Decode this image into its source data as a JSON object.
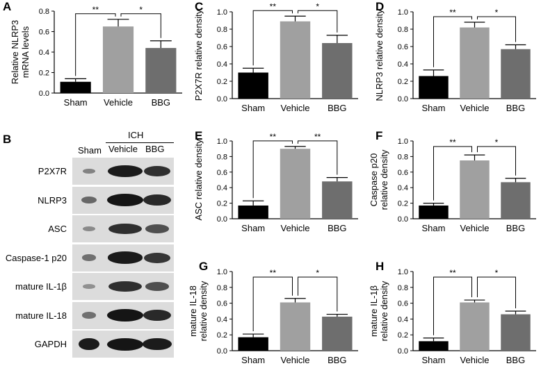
{
  "letters": {
    "A": "A",
    "B": "B",
    "C": "C",
    "D": "D",
    "E": "E",
    "F": "F",
    "G": "G",
    "H": "H"
  },
  "blot": {
    "group_label": "ICH",
    "columns": [
      "Sham",
      "Vehicle",
      "BBG"
    ],
    "rows": [
      "P2X7R",
      "NLRP3",
      "ASC",
      "Caspase-1 p20",
      "mature IL-1β",
      "mature IL-18",
      "GAPDH"
    ],
    "intensity": [
      [
        0.15,
        0.95,
        0.8
      ],
      [
        0.35,
        1.0,
        0.85
      ],
      [
        0.1,
        0.8,
        0.55
      ],
      [
        0.3,
        0.95,
        0.75
      ],
      [
        0.05,
        0.8,
        0.55
      ],
      [
        0.3,
        1.0,
        0.85
      ],
      [
        0.95,
        1.0,
        0.95
      ]
    ]
  },
  "colors": {
    "sham": "#000000",
    "vehicle": "#a0a0a0",
    "bbg": "#6e6e6e"
  },
  "chart_data": [
    {
      "id": "A",
      "type": "bar",
      "categories": [
        "Sham",
        "Vehicle",
        "BBG"
      ],
      "values": [
        0.11,
        0.65,
        0.44
      ],
      "errors": [
        0.03,
        0.07,
        0.07
      ],
      "ylabel": [
        "Relative NLRP3",
        "mRNA levels"
      ],
      "ylim": [
        0,
        0.8
      ],
      "ticks": [
        "0.0",
        "0.2",
        "0.4",
        "0.6",
        "0.8"
      ],
      "significance": [
        {
          "from": 0,
          "to": 1,
          "label": "**"
        },
        {
          "from": 1,
          "to": 2,
          "label": "*"
        }
      ]
    },
    {
      "id": "C",
      "type": "bar",
      "categories": [
        "Sham",
        "Vehicle",
        "BBG"
      ],
      "values": [
        0.3,
        0.89,
        0.64
      ],
      "errors": [
        0.05,
        0.06,
        0.09
      ],
      "ylabel": [
        "P2X7R relative density"
      ],
      "ylim": [
        0,
        1.0
      ],
      "ticks": [
        "0.0",
        "0.2",
        "0.4",
        "0.6",
        "0.8",
        "1.0"
      ],
      "significance": [
        {
          "from": 0,
          "to": 1,
          "label": "**"
        },
        {
          "from": 1,
          "to": 2,
          "label": "*"
        }
      ]
    },
    {
      "id": "D",
      "type": "bar",
      "categories": [
        "Sham",
        "Vehicle",
        "BBG"
      ],
      "values": [
        0.26,
        0.82,
        0.57
      ],
      "errors": [
        0.07,
        0.06,
        0.05
      ],
      "ylabel": [
        "NLRP3 relative density"
      ],
      "ylim": [
        0,
        1.0
      ],
      "ticks": [
        "0.0",
        "0.2",
        "0.4",
        "0.6",
        "0.8",
        "1.0"
      ],
      "significance": [
        {
          "from": 0,
          "to": 1,
          "label": "**"
        },
        {
          "from": 1,
          "to": 2,
          "label": "*"
        }
      ]
    },
    {
      "id": "E",
      "type": "bar",
      "categories": [
        "Sham",
        "Vehicle",
        "BBG"
      ],
      "values": [
        0.17,
        0.9,
        0.48
      ],
      "errors": [
        0.06,
        0.03,
        0.05
      ],
      "ylabel": [
        "ASC relative density"
      ],
      "ylim": [
        0,
        1.0
      ],
      "ticks": [
        "0.0",
        "0.2",
        "0.4",
        "0.6",
        "0.8",
        "1.0"
      ],
      "significance": [
        {
          "from": 0,
          "to": 1,
          "label": "**"
        },
        {
          "from": 1,
          "to": 2,
          "label": "**"
        }
      ]
    },
    {
      "id": "F",
      "type": "bar",
      "categories": [
        "Sham",
        "Vehicle",
        "BBG"
      ],
      "values": [
        0.17,
        0.75,
        0.47
      ],
      "errors": [
        0.03,
        0.07,
        0.05
      ],
      "ylabel": [
        "Caspase p20",
        "relative density"
      ],
      "ylim": [
        0,
        1.0
      ],
      "ticks": [
        "0.0",
        "0.2",
        "0.4",
        "0.6",
        "0.8",
        "1.0"
      ],
      "significance": [
        {
          "from": 0,
          "to": 1,
          "label": "**"
        },
        {
          "from": 1,
          "to": 2,
          "label": "*"
        }
      ]
    },
    {
      "id": "G",
      "type": "bar",
      "categories": [
        "Sham",
        "Vehicle",
        "BBG"
      ],
      "values": [
        0.17,
        0.61,
        0.43
      ],
      "errors": [
        0.04,
        0.05,
        0.03
      ],
      "ylabel": [
        "mature IL-18",
        "relative density"
      ],
      "ylim": [
        0,
        1.0
      ],
      "ticks": [
        "0.0",
        "0.2",
        "0.4",
        "0.6",
        "0.8",
        "1.0"
      ],
      "significance": [
        {
          "from": 0,
          "to": 1,
          "label": "**"
        },
        {
          "from": 1,
          "to": 2,
          "label": "*"
        }
      ]
    },
    {
      "id": "H",
      "type": "bar",
      "categories": [
        "Sham",
        "Vehicle",
        "BBG"
      ],
      "values": [
        0.12,
        0.61,
        0.46
      ],
      "errors": [
        0.04,
        0.03,
        0.04
      ],
      "ylabel": [
        "mature IL-1β",
        "relative density"
      ],
      "ylim": [
        0,
        1.0
      ],
      "ticks": [
        "0.0",
        "0.2",
        "0.4",
        "0.6",
        "0.8",
        "1.0"
      ],
      "significance": [
        {
          "from": 0,
          "to": 1,
          "label": "**"
        },
        {
          "from": 1,
          "to": 2,
          "label": "*"
        }
      ]
    }
  ]
}
